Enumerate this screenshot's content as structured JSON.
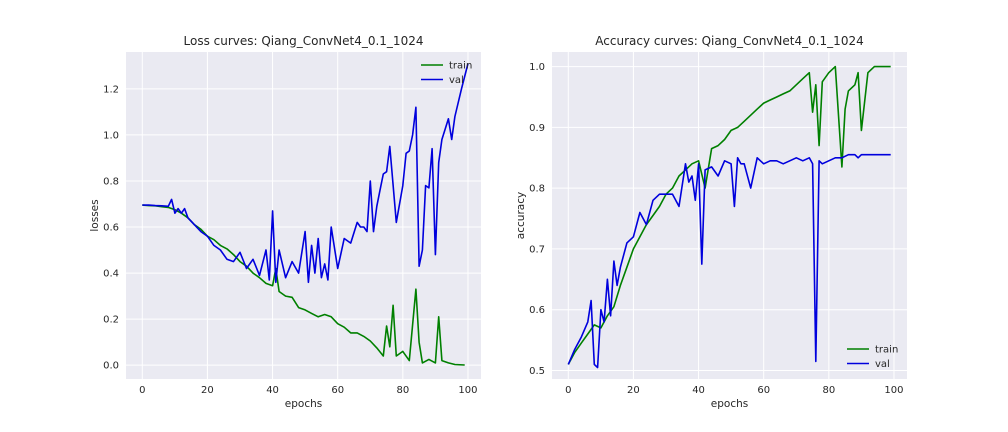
{
  "chart_data": [
    {
      "type": "line",
      "title": "Loss curves: Qiang_ConvNet4_0.1_1024",
      "xlabel": "epochs",
      "ylabel": "losses",
      "xlim": [
        -5,
        104
      ],
      "ylim": [
        -0.06,
        1.36
      ],
      "xticks": [
        0,
        20,
        40,
        60,
        80,
        100
      ],
      "yticks": [
        0.0,
        0.2,
        0.4,
        0.6,
        0.8,
        1.0,
        1.2
      ],
      "ytick_labels": [
        "0.0",
        "0.2",
        "0.4",
        "0.6",
        "0.8",
        "1.0",
        "1.2"
      ],
      "grid": true,
      "legend": "top-right",
      "series": [
        {
          "name": "train",
          "color": "#008000",
          "x": [
            0,
            2,
            4,
            6,
            8,
            10,
            12,
            14,
            16,
            18,
            20,
            22,
            24,
            26,
            28,
            30,
            32,
            34,
            36,
            38,
            40,
            41,
            42,
            44,
            46,
            48,
            50,
            52,
            54,
            56,
            58,
            60,
            62,
            64,
            66,
            68,
            70,
            72,
            74,
            75,
            76,
            77,
            78,
            80,
            82,
            84,
            85,
            86,
            88,
            90,
            91,
            92,
            94,
            96,
            99
          ],
          "y": [
            0.695,
            0.693,
            0.692,
            0.688,
            0.685,
            0.675,
            0.66,
            0.64,
            0.61,
            0.59,
            0.56,
            0.545,
            0.52,
            0.505,
            0.48,
            0.45,
            0.43,
            0.4,
            0.38,
            0.355,
            0.345,
            0.42,
            0.32,
            0.3,
            0.295,
            0.25,
            0.24,
            0.225,
            0.21,
            0.22,
            0.21,
            0.18,
            0.165,
            0.14,
            0.14,
            0.125,
            0.105,
            0.075,
            0.04,
            0.17,
            0.08,
            0.26,
            0.04,
            0.06,
            0.02,
            0.33,
            0.1,
            0.01,
            0.025,
            0.01,
            0.21,
            0.02,
            0.01,
            0.003,
            0.001
          ]
        },
        {
          "name": "val",
          "color": "#0000dd",
          "x": [
            0,
            2,
            4,
            6,
            8,
            9,
            10,
            11,
            12,
            13,
            14,
            16,
            18,
            20,
            22,
            24,
            26,
            28,
            30,
            32,
            34,
            36,
            38,
            39,
            40,
            41,
            42,
            44,
            46,
            48,
            50,
            51,
            52,
            53,
            54,
            55,
            56,
            57,
            58,
            60,
            62,
            64,
            66,
            67,
            68,
            69,
            70,
            71,
            72,
            73,
            74,
            75,
            76,
            78,
            80,
            81,
            82,
            83,
            84,
            85,
            86,
            87,
            88,
            89,
            90,
            91,
            92,
            94,
            95,
            96,
            98,
            100
          ],
          "y": [
            0.695,
            0.695,
            0.693,
            0.692,
            0.69,
            0.72,
            0.66,
            0.68,
            0.66,
            0.68,
            0.64,
            0.61,
            0.58,
            0.56,
            0.52,
            0.5,
            0.46,
            0.45,
            0.49,
            0.42,
            0.46,
            0.39,
            0.5,
            0.37,
            0.67,
            0.36,
            0.5,
            0.38,
            0.45,
            0.4,
            0.58,
            0.36,
            0.52,
            0.4,
            0.55,
            0.38,
            0.44,
            0.37,
            0.6,
            0.42,
            0.55,
            0.53,
            0.62,
            0.6,
            0.6,
            0.58,
            0.8,
            0.58,
            0.69,
            0.76,
            0.83,
            0.84,
            0.95,
            0.62,
            0.78,
            0.92,
            0.93,
            1.0,
            1.12,
            0.43,
            0.5,
            0.78,
            0.77,
            0.94,
            0.48,
            0.88,
            0.98,
            1.07,
            0.98,
            1.08,
            1.2,
            1.31
          ]
        }
      ]
    },
    {
      "type": "line",
      "title": "Accuracy curves: Qiang_ConvNet4_0.1_1024",
      "xlabel": "epochs",
      "ylabel": "accuracy",
      "xlim": [
        -5,
        104
      ],
      "ylim": [
        0.486,
        1.024
      ],
      "xticks": [
        0,
        20,
        40,
        60,
        80,
        100
      ],
      "yticks": [
        0.5,
        0.6,
        0.7,
        0.8,
        0.9,
        1.0
      ],
      "ytick_labels": [
        "0.5",
        "0.6",
        "0.7",
        "0.8",
        "0.9",
        "1.0"
      ],
      "grid": true,
      "legend": "bottom-right",
      "series": [
        {
          "name": "train",
          "color": "#008000",
          "x": [
            0,
            2,
            4,
            6,
            8,
            10,
            12,
            14,
            16,
            18,
            20,
            22,
            24,
            26,
            28,
            30,
            32,
            34,
            36,
            38,
            40,
            42,
            44,
            46,
            48,
            50,
            52,
            54,
            56,
            58,
            60,
            62,
            64,
            66,
            68,
            70,
            72,
            74,
            75,
            76,
            77,
            78,
            80,
            82,
            84,
            85,
            86,
            88,
            89,
            90,
            92,
            94,
            96,
            99
          ],
          "y": [
            0.51,
            0.53,
            0.545,
            0.56,
            0.575,
            0.57,
            0.59,
            0.605,
            0.64,
            0.67,
            0.7,
            0.72,
            0.74,
            0.755,
            0.77,
            0.79,
            0.8,
            0.82,
            0.83,
            0.84,
            0.845,
            0.8,
            0.865,
            0.87,
            0.88,
            0.895,
            0.9,
            0.91,
            0.92,
            0.93,
            0.94,
            0.945,
            0.95,
            0.955,
            0.96,
            0.97,
            0.98,
            0.99,
            0.925,
            0.97,
            0.87,
            0.975,
            0.99,
            1.0,
            0.835,
            0.93,
            0.96,
            0.97,
            0.99,
            0.895,
            0.99,
            1.0,
            1.0,
            1.0
          ]
        },
        {
          "name": "val",
          "color": "#0000dd",
          "x": [
            0,
            2,
            4,
            6,
            7,
            8,
            9,
            10,
            11,
            12,
            13,
            14,
            15,
            16,
            18,
            20,
            22,
            24,
            26,
            28,
            30,
            32,
            34,
            36,
            37,
            38,
            39,
            40,
            41,
            42,
            44,
            46,
            48,
            50,
            51,
            52,
            53,
            54,
            56,
            58,
            60,
            62,
            64,
            66,
            68,
            70,
            72,
            74,
            75,
            76,
            77,
            78,
            80,
            82,
            84,
            86,
            88,
            89,
            90,
            92,
            94,
            96,
            99
          ],
          "y": [
            0.51,
            0.535,
            0.555,
            0.58,
            0.615,
            0.51,
            0.505,
            0.6,
            0.58,
            0.65,
            0.59,
            0.68,
            0.64,
            0.67,
            0.71,
            0.72,
            0.76,
            0.74,
            0.78,
            0.79,
            0.79,
            0.79,
            0.77,
            0.84,
            0.81,
            0.82,
            0.78,
            0.84,
            0.675,
            0.83,
            0.835,
            0.82,
            0.845,
            0.84,
            0.77,
            0.85,
            0.84,
            0.84,
            0.8,
            0.85,
            0.84,
            0.845,
            0.845,
            0.84,
            0.845,
            0.85,
            0.845,
            0.85,
            0.84,
            0.515,
            0.845,
            0.84,
            0.845,
            0.85,
            0.85,
            0.855,
            0.855,
            0.85,
            0.855,
            0.855,
            0.855,
            0.855,
            0.855
          ]
        }
      ]
    }
  ]
}
